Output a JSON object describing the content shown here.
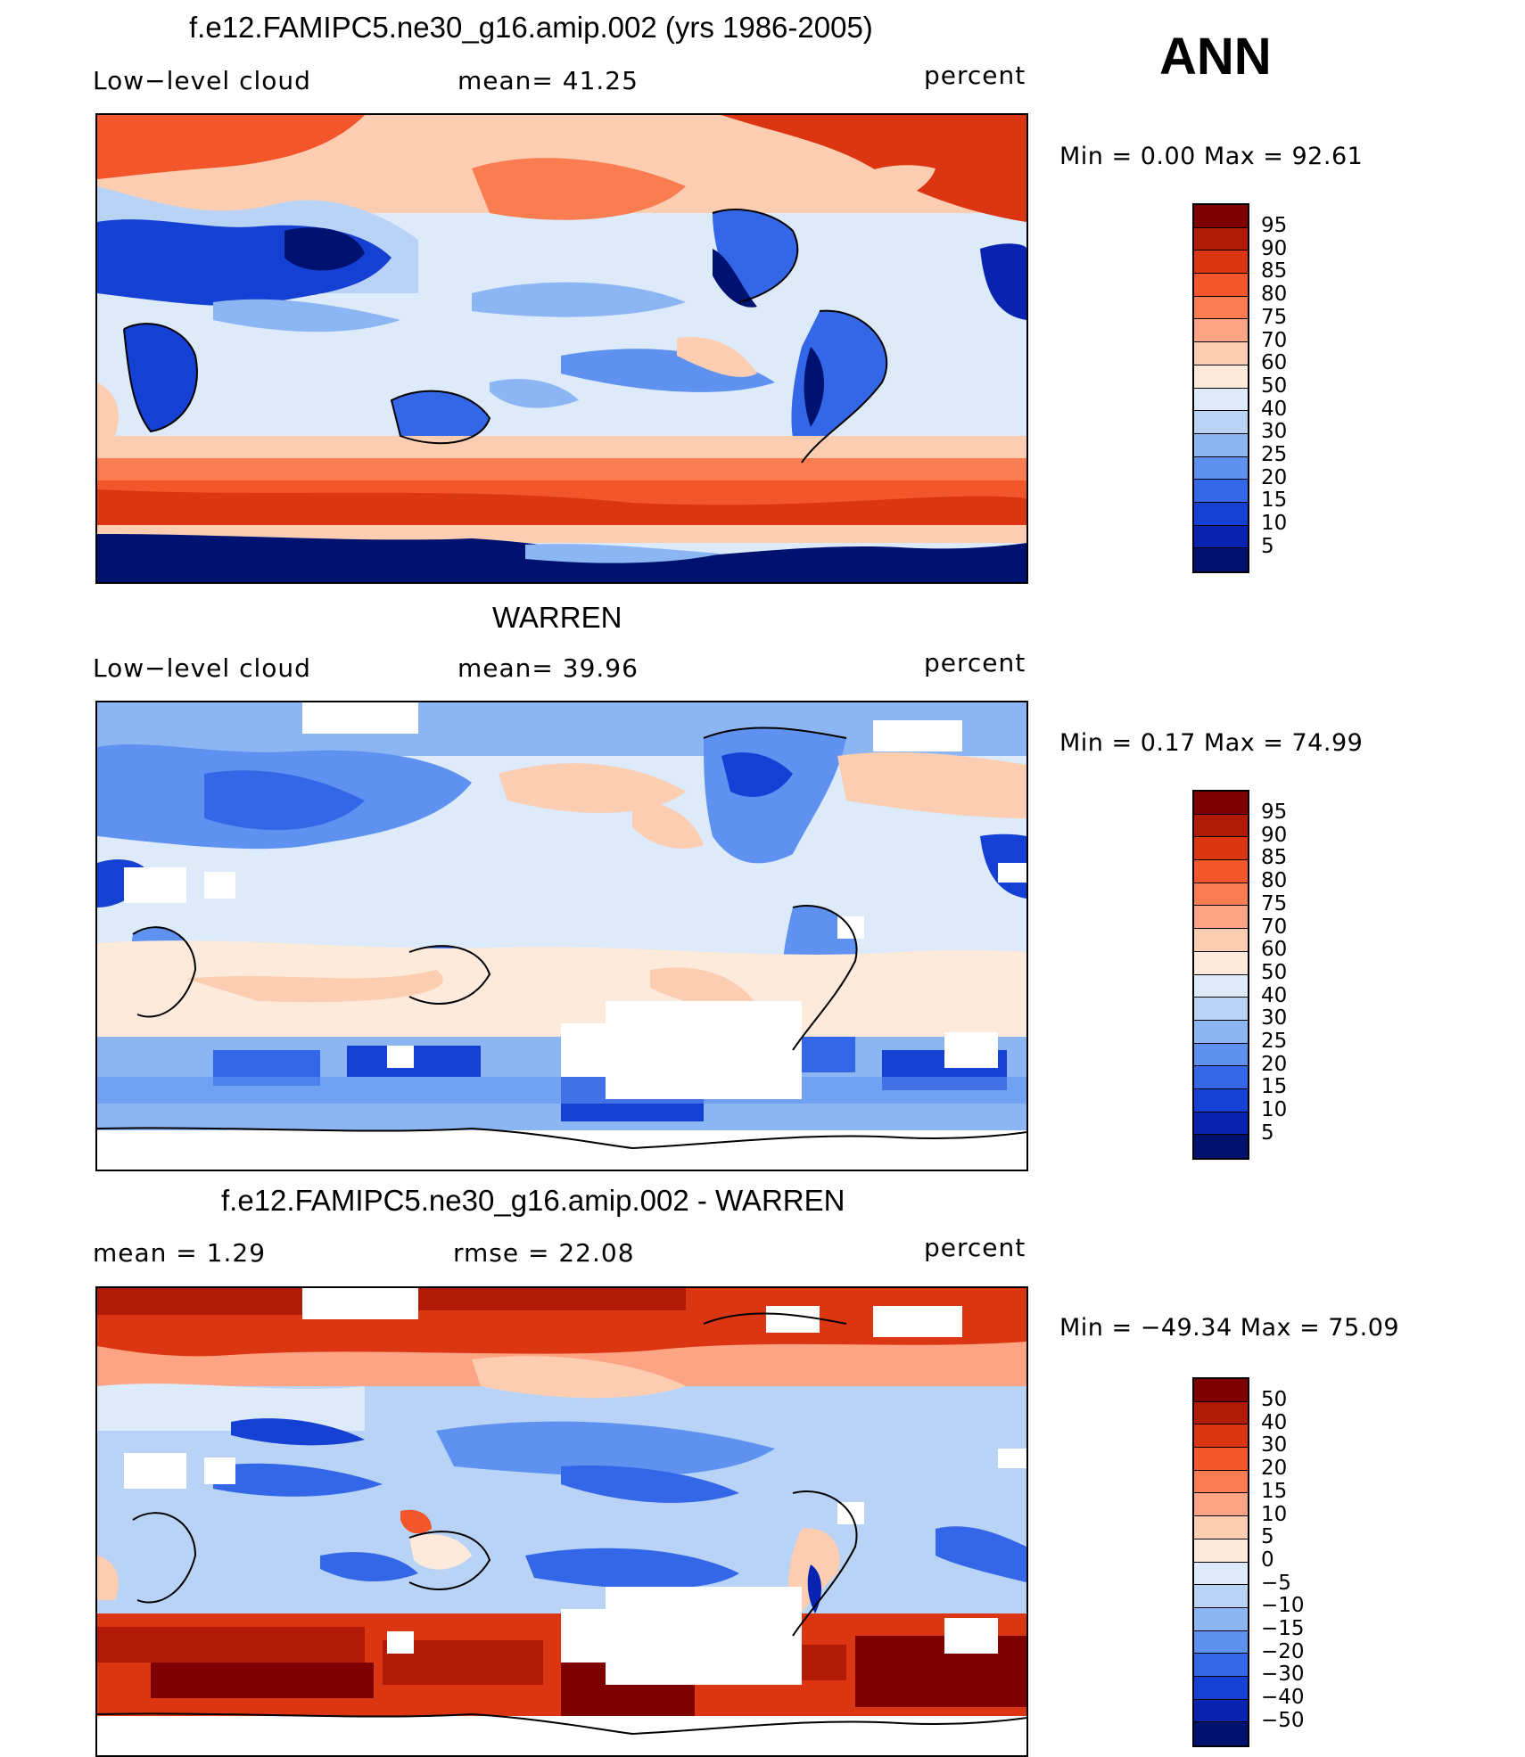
{
  "season_label": "ANN",
  "panels": [
    {
      "title": "f.e12.FAMIPC5.ne30_g16.amip.002 (yrs 1986-2005)",
      "left_label": "Low−level cloud",
      "mid_label": "mean=   41.25",
      "right_label": "percent",
      "min_max": "Min  =     0.00  Max  =    92.61",
      "levels": [
        "95",
        "90",
        "85",
        "80",
        "75",
        "70",
        "60",
        "50",
        "40",
        "30",
        "25",
        "20",
        "15",
        "10",
        "5"
      ]
    },
    {
      "title": "WARREN",
      "left_label": "Low−level cloud",
      "mid_label": "mean=   39.96",
      "right_label": "percent",
      "min_max": "Min  =     0.17  Max  =    74.99",
      "levels": [
        "95",
        "90",
        "85",
        "80",
        "75",
        "70",
        "60",
        "50",
        "40",
        "30",
        "25",
        "20",
        "15",
        "10",
        "5"
      ]
    },
    {
      "title": "f.e12.FAMIPC5.ne30_g16.amip.002 - WARREN",
      "left_label": "mean  =     1.29",
      "mid_label": "rmse  =    22.08",
      "right_label": "percent",
      "min_max": "Min  = −49.34  Max  =    75.09",
      "levels": [
        "50",
        "40",
        "30",
        "20",
        "15",
        "10",
        "5",
        "0",
        "−5",
        "−10",
        "−15",
        "−20",
        "−30",
        "−40",
        "−50"
      ]
    }
  ],
  "colors": {
    "palette": [
      "#7f0000",
      "#b01a06",
      "#dc3512",
      "#f2562a",
      "#fa7d52",
      "#fda484",
      "#fdcdb2",
      "#fdeadb",
      "#dceaf9",
      "#b8d3f6",
      "#8cb6f3",
      "#5f92f0",
      "#3466e8",
      "#1540d4",
      "#0723b0",
      "#001270"
    ]
  }
}
